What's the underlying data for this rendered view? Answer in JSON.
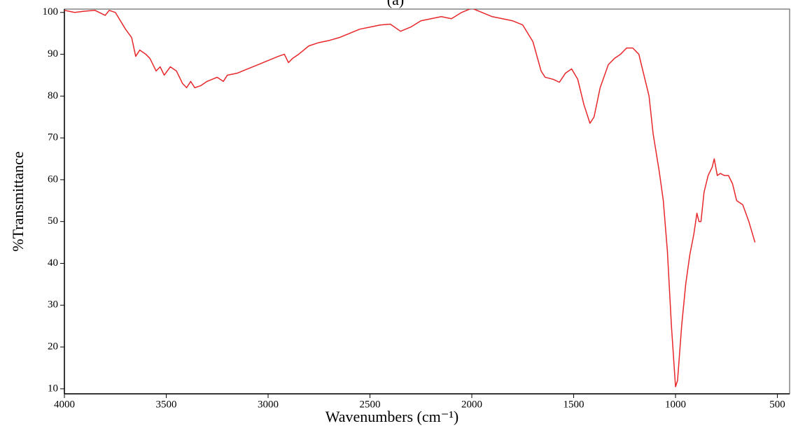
{
  "chart_data": {
    "type": "line",
    "title": "(a)",
    "x_label": "Wavenumbers (cm⁻¹)",
    "y_label": "%Transmittance",
    "color": "#e8272a",
    "x": [
      4000,
      3950,
      3900,
      3850,
      3800,
      3780,
      3750,
      3700,
      3670,
      3650,
      3630,
      3600,
      3580,
      3550,
      3530,
      3510,
      3480,
      3450,
      3420,
      3400,
      3380,
      3360,
      3330,
      3300,
      3250,
      3220,
      3200,
      3150,
      3100,
      3050,
      3000,
      2950,
      2920,
      2900,
      2880,
      2850,
      2800,
      2750,
      2700,
      2650,
      2600,
      2550,
      2500,
      2450,
      2400,
      2350,
      2300,
      2250,
      2200,
      2150,
      2100,
      2050,
      2000,
      1950,
      1900,
      1850,
      1800,
      1750,
      1700,
      1660,
      1640,
      1600,
      1570,
      1540,
      1510,
      1480,
      1450,
      1420,
      1400,
      1370,
      1330,
      1300,
      1270,
      1240,
      1210,
      1180,
      1150,
      1130,
      1110,
      1080,
      1060,
      1040,
      1020,
      1000,
      990,
      970,
      950,
      930,
      910,
      895,
      885,
      875,
      860,
      840,
      820,
      810,
      795,
      780,
      760,
      740,
      720,
      700,
      670,
      640,
      610
    ],
    "values": [
      100.5,
      100,
      100.3,
      100.5,
      99.3,
      100.5,
      100,
      96,
      94,
      89.5,
      91,
      90,
      89,
      86,
      87,
      85,
      87,
      86,
      83,
      82,
      83.5,
      82,
      82.5,
      83.5,
      84.5,
      83.5,
      85,
      85.5,
      86.5,
      87.5,
      88.5,
      89.5,
      90,
      88,
      89,
      90,
      92,
      92.8,
      93.3,
      94,
      95,
      96,
      96.5,
      97,
      97.2,
      95.5,
      96.5,
      98,
      98.5,
      99,
      98.5,
      100,
      101,
      100,
      99,
      98.5,
      98,
      97,
      93,
      86,
      84.5,
      84,
      83.3,
      85.5,
      86.5,
      84,
      78,
      73.5,
      75,
      82,
      87.5,
      89,
      90,
      91.5,
      91.5,
      90,
      84,
      80,
      71,
      62,
      55,
      43,
      25,
      10.5,
      12,
      25,
      35,
      42,
      47,
      52,
      50,
      50,
      57,
      61,
      63,
      65,
      61,
      61.5,
      61,
      61,
      59,
      55,
      54,
      50,
      45
    ],
    "xlim": [
      4000,
      440
    ],
    "ylim": [
      8.8,
      100.8
    ],
    "xticks": [
      4000,
      3500,
      3000,
      2500,
      2000,
      1500,
      1000,
      500
    ],
    "yticks": [
      10,
      20,
      30,
      40,
      50,
      60,
      70,
      80,
      90,
      100
    ]
  }
}
